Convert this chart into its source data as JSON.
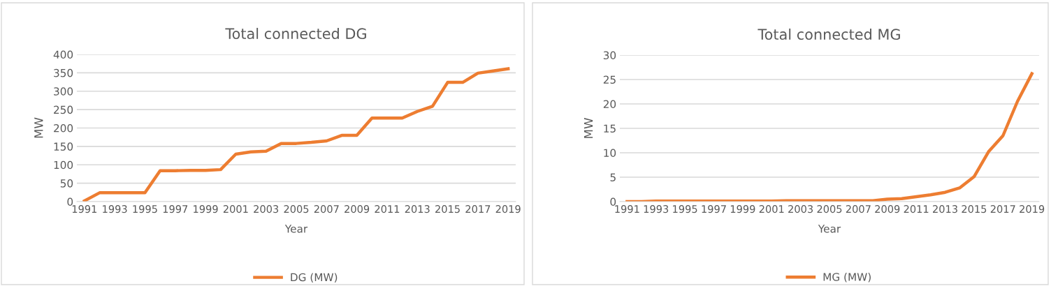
{
  "chart_data": [
    {
      "type": "line",
      "title": "Total connected DG",
      "xlabel": "Year",
      "ylabel": "MW",
      "categories": [
        "1991",
        null,
        "1993",
        null,
        "1995",
        null,
        "1997",
        null,
        "1999",
        null,
        "2001",
        null,
        "2003",
        null,
        "2005",
        null,
        "2007",
        null,
        "2009",
        null,
        "2011",
        null,
        "2013",
        null,
        "2015",
        null,
        "2017",
        null,
        "2019"
      ],
      "series": [
        {
          "name": "DG (MW)",
          "color": "#ed7d31",
          "values": [
            2,
            24,
            24,
            24,
            24,
            84,
            84,
            85,
            85,
            87,
            129,
            135,
            137,
            158,
            158,
            161,
            165,
            180,
            180,
            227,
            227,
            227,
            245,
            259,
            324,
            324,
            349,
            355,
            361
          ]
        }
      ],
      "ylim": [
        0,
        400
      ],
      "yticks": [
        0,
        50,
        100,
        150,
        200,
        250,
        300,
        350,
        400
      ],
      "grid": "y",
      "legend": "bottom",
      "marker": "none",
      "line_style": "solid"
    },
    {
      "type": "line",
      "title": "Total connected MG",
      "xlabel": "Year",
      "ylabel": "MW",
      "categories": [
        "1991",
        null,
        "1993",
        null,
        "1995",
        null,
        "1997",
        null,
        "1999",
        null,
        "2001",
        null,
        "2003",
        null,
        "2005",
        null,
        "2007",
        null,
        "2009",
        null,
        "2011",
        null,
        "2013",
        null,
        "2015",
        null,
        "2017",
        null,
        "2019"
      ],
      "series": [
        {
          "name": "MG (MW)",
          "color": "#ed7d31",
          "values": [
            0,
            0,
            0.1,
            0.1,
            0.1,
            0.1,
            0.1,
            0.1,
            0.1,
            0.1,
            0.1,
            0.2,
            0.2,
            0.2,
            0.2,
            0.2,
            0.2,
            0.2,
            0.5,
            0.6,
            1.0,
            1.4,
            1.9,
            2.8,
            5.1,
            10.2,
            13.5,
            20.5,
            26.2
          ]
        }
      ],
      "ylim": [
        0,
        30
      ],
      "yticks": [
        0,
        5,
        10,
        15,
        20,
        25,
        30
      ],
      "grid": "y",
      "legend": "bottom",
      "marker": "none",
      "line_style": "solid"
    }
  ]
}
